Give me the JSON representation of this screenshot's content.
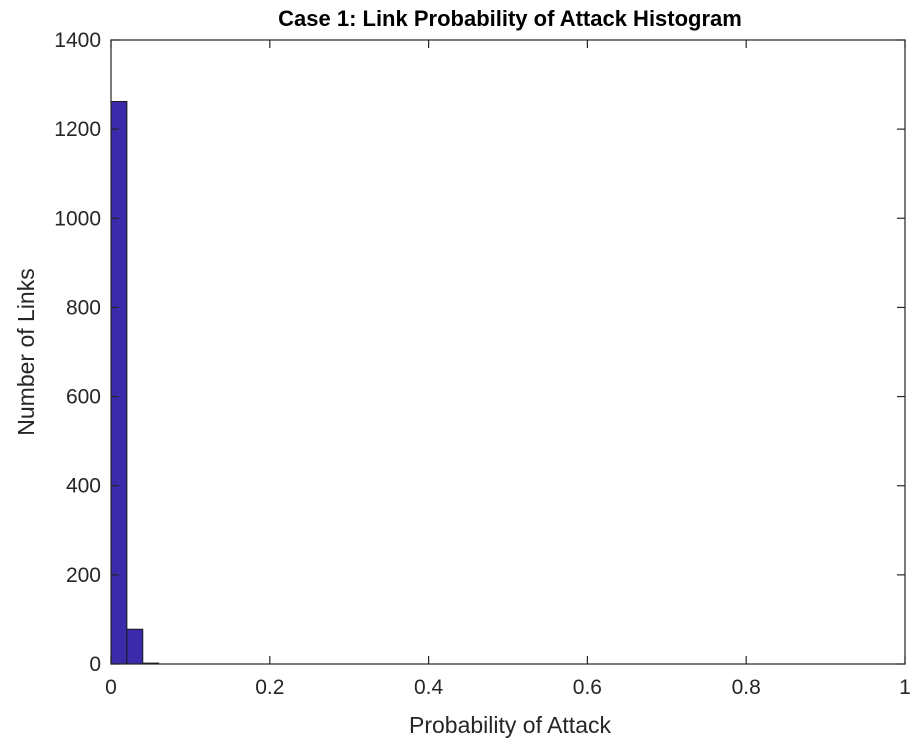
{
  "chart_data": {
    "type": "bar",
    "title": "Case 1: Link Probability of Attack Histogram",
    "xlabel": "Probability of Attack",
    "ylabel": "Number of Links",
    "xlim": [
      0,
      1
    ],
    "ylim": [
      0,
      1400
    ],
    "xticks": [
      0,
      0.2,
      0.4,
      0.6,
      0.8,
      1
    ],
    "xtick_labels": [
      "0",
      "0.2",
      "0.4",
      "0.6",
      "0.8",
      "1"
    ],
    "yticks": [
      0,
      200,
      400,
      600,
      800,
      1000,
      1200,
      1400
    ],
    "ytick_labels": [
      "0",
      "200",
      "400",
      "600",
      "800",
      "1000",
      "1200",
      "1400"
    ],
    "bin_width": 0.02,
    "bins": [
      {
        "x0": 0.0,
        "x1": 0.02,
        "count": 1262
      },
      {
        "x0": 0.02,
        "x1": 0.04,
        "count": 78
      },
      {
        "x0": 0.04,
        "x1": 0.06,
        "count": 2
      }
    ],
    "bar_color": "#3b2bab",
    "bar_edge_color": "#1a1a1a",
    "grid": false
  }
}
